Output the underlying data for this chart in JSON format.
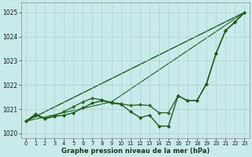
{
  "bg_color": "#c8eaea",
  "grid_color": "#b0d0d0",
  "xlabel": "Graphe pression niveau de la mer (hPa)",
  "xlim": [
    -0.5,
    23.5
  ],
  "ylim": [
    1019.8,
    1025.4
  ],
  "yticks": [
    1020,
    1021,
    1022,
    1023,
    1024,
    1025
  ],
  "xticks": [
    0,
    1,
    2,
    3,
    4,
    5,
    6,
    7,
    8,
    9,
    10,
    11,
    12,
    13,
    14,
    15,
    16,
    17,
    18,
    19,
    20,
    21,
    22,
    23
  ],
  "series_detail1": {
    "x": [
      0,
      1,
      2,
      3,
      4,
      5,
      6,
      7,
      8,
      9,
      10,
      11,
      12,
      13,
      14,
      15,
      16,
      17,
      18,
      19,
      20,
      21,
      22,
      23
    ],
    "y": [
      1020.5,
      1020.75,
      1020.6,
      1020.7,
      1020.75,
      1020.85,
      1021.05,
      1021.25,
      1021.35,
      1021.25,
      1021.2,
      1020.9,
      1020.65,
      1020.75,
      1020.3,
      1020.3,
      1021.55,
      1021.35,
      1021.35,
      1022.05,
      1023.3,
      1024.25,
      1024.6,
      1025.0
    ],
    "color": "#1a5c1a",
    "linewidth": 1.0,
    "marker": "D",
    "markersize": 2.0
  },
  "series_detail2": {
    "x": [
      0,
      1,
      2,
      3,
      4,
      5,
      6,
      7,
      8,
      9,
      10,
      11,
      12,
      13,
      14,
      15,
      16,
      17,
      18,
      19,
      20,
      21,
      22,
      23
    ],
    "y": [
      1020.5,
      1020.8,
      1020.62,
      1020.72,
      1020.9,
      1021.1,
      1021.3,
      1021.45,
      1021.38,
      1021.28,
      1021.22,
      1021.15,
      1021.18,
      1021.15,
      1020.85,
      1020.85,
      1021.55,
      1021.35,
      1021.35,
      1022.05,
      1023.3,
      1024.25,
      1024.6,
      1025.0
    ],
    "color": "#2d6b2d",
    "linewidth": 1.0,
    "marker": "D",
    "markersize": 2.0
  },
  "trend_line1": {
    "x": [
      0,
      23
    ],
    "y": [
      1020.5,
      1025.0
    ],
    "color": "#1a5c1a",
    "linewidth": 1.0
  },
  "trend_line2": {
    "x": [
      0,
      9,
      23
    ],
    "y": [
      1020.5,
      1021.3,
      1025.0
    ],
    "color": "#2d6b2d",
    "linewidth": 0.9
  }
}
